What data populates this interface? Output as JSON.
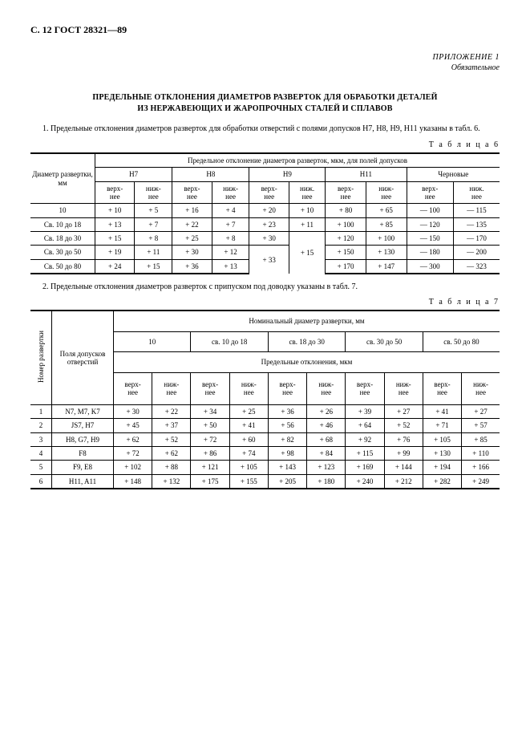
{
  "page_header": "С. 12 ГОСТ 28321—89",
  "appendix": {
    "line1": "ПРИЛОЖЕНИЕ 1",
    "line2": "Обязательное"
  },
  "title_line1": "ПРЕДЕЛЬНЫЕ ОТКЛОНЕНИЯ ДИАМЕТРОВ РАЗВЕРТОК ДЛЯ ОБРАБОТКИ ДЕТАЛЕЙ",
  "title_line2": "ИЗ НЕРЖАВЕЮЩИХ И ЖАРОПРОЧНЫХ СТАЛЕЙ И СПЛАВОВ",
  "intro": "1. Предельные отклонения диаметров разверток для обработки отверстий с полями допусков Н7, Н8, Н9, Н11 указаны в табл. 6.",
  "table6_label": "Т а б л и ц а  6",
  "t6": {
    "super_header": "Предельное отклонение диаметров разверток, мкм, для полей допусков",
    "col_diam": "Диаметр развертки, мм",
    "groups": [
      "Н7",
      "Н8",
      "Н9",
      "Н11",
      "Черновые"
    ],
    "sub": {
      "up": "верх-\nнее",
      "low": "ниж-\nнее",
      "low2": "ниж.\nнее"
    },
    "rows": [
      {
        "d": "10",
        "h7u": "+ 10",
        "h7l": "+ 5",
        "h8u": "+ 16",
        "h8l": "+ 4",
        "h9u": "+ 20",
        "h9l": "+ 10",
        "h11u": "+   80",
        "h11l": "+ 65",
        "ru": "— 100",
        "rl": "— 115"
      },
      {
        "d": "Св. 10 до 18",
        "h7u": "+ 13",
        "h7l": "+ 7",
        "h8u": "+ 22",
        "h8l": "+ 7",
        "h9u": "+ 23",
        "h9l": "+ 11",
        "h11u": "+ 100",
        "h11l": "+ 85",
        "ru": "— 120",
        "rl": "— 135"
      },
      {
        "d": "Св. 18 до 30",
        "h7u": "+ 15",
        "h7l": "+ 8",
        "h8u": "+ 25",
        "h8l": "+ 8",
        "h9u": "+ 30",
        "h9l": "",
        "h11u": "+ 120",
        "h11l": "+ 100",
        "ru": "— 150",
        "rl": "— 170"
      },
      {
        "d": "Св. 30 до 50",
        "h7u": "+ 19",
        "h7l": "+ 11",
        "h8u": "+ 30",
        "h8l": "+ 12",
        "h9u": "",
        "h9l": "+ 15",
        "h11u": "+ 150",
        "h11l": "+ 130",
        "ru": "— 180",
        "rl": "— 200"
      },
      {
        "d": "Св. 50 до 80",
        "h7u": "+ 24",
        "h7l": "+ 15",
        "h8u": "+ 36",
        "h8l": "+ 13",
        "h9u": "",
        "h9l": "",
        "h11u": "+ 170",
        "h11l": "+ 147",
        "ru": "— 300",
        "rl": "— 323"
      }
    ],
    "h9_merge_u": "+ 33",
    "h9_merge_l": "+ 15"
  },
  "note2": "2.  Предельные отклонения диаметров разверток с припуском под доводку указаны в табл. 7.",
  "table7_label": "Т а б л и ц а  7",
  "t7": {
    "col_no": "Номер развертки",
    "col_field": "Поля допусков отверстий",
    "super": "Номинальный диаметр развертки, мм",
    "ranges": [
      "10",
      "св. 10 до 18",
      "св. 18 до 30",
      "св. 30 до 50",
      "св. 50 до 80"
    ],
    "mid": "Предельные отклонения, мкм",
    "sub_up": "верх-\nнее",
    "sub_low": "ниж-\nнее",
    "rows": [
      {
        "n": "1",
        "f": "N7, M7, K7",
        "v": [
          "+ 30",
          "+ 22",
          "+ 34",
          "+ 25",
          "+ 36",
          "+ 26",
          "+ 39",
          "+ 27",
          "+ 41",
          "+ 27"
        ]
      },
      {
        "n": "2",
        "f": "JS7, H7",
        "v": [
          "+ 45",
          "+ 37",
          "+ 50",
          "+ 41",
          "+ 56",
          "+ 46",
          "+ 64",
          "+ 52",
          "+ 71",
          "+ 57"
        ]
      },
      {
        "n": "3",
        "f": "H8, G7, H9",
        "v": [
          "+ 62",
          "+ 52",
          "+ 72",
          "+ 60",
          "+ 82",
          "+ 68",
          "+ 92",
          "+ 76",
          "+ 105",
          "+ 85"
        ]
      },
      {
        "n": "4",
        "f": "F8",
        "v": [
          "+ 72",
          "+ 62",
          "+ 86",
          "+ 74",
          "+ 98",
          "+ 84",
          "+ 115",
          "+ 99",
          "+ 130",
          "+ 110"
        ]
      },
      {
        "n": "5",
        "f": "F9, E8",
        "v": [
          "+ 102",
          "+ 88",
          "+ 121",
          "+ 105",
          "+ 143",
          "+ 123",
          "+ 169",
          "+ 144",
          "+ 194",
          "+ 166"
        ]
      },
      {
        "n": "6",
        "f": "H11, A11",
        "v": [
          "+ 148",
          "+ 132",
          "+ 175",
          "+ 155",
          "+ 205",
          "+ 180",
          "+ 240",
          "+ 212",
          "+ 282",
          "+ 249"
        ]
      }
    ]
  }
}
